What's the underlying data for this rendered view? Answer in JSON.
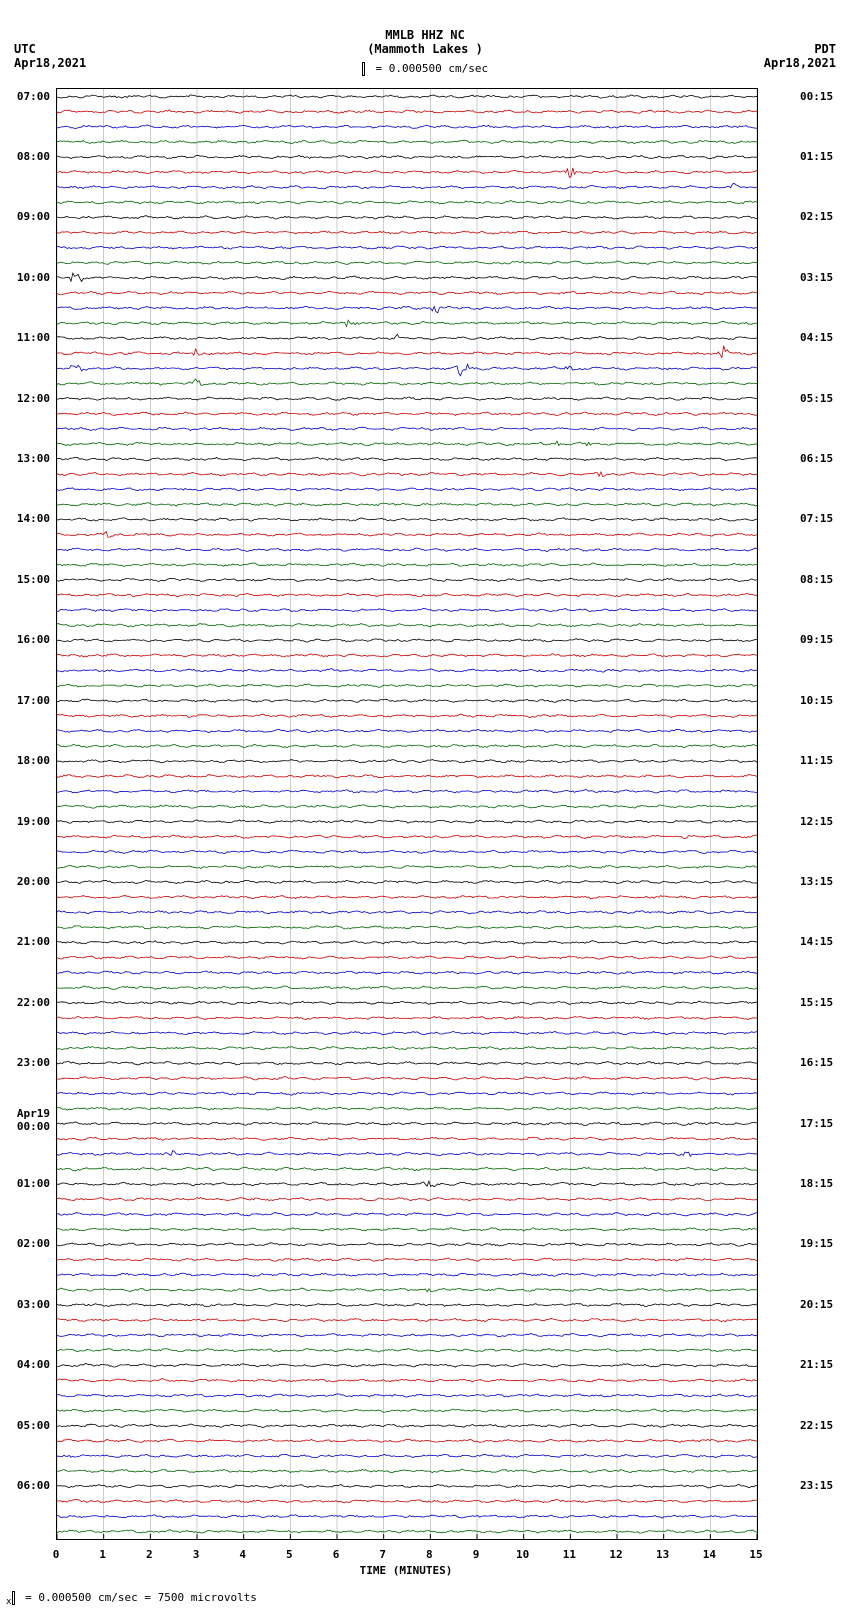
{
  "type": "helicorder",
  "header": {
    "station": "MMLB HHZ NC",
    "location": "(Mammoth Lakes )",
    "scale_label": "= 0.000500 cm/sec"
  },
  "left_axis": {
    "tz": "UTC",
    "date": "Apr18,2021"
  },
  "right_axis": {
    "tz": "PDT",
    "date": "Apr18,2021"
  },
  "footer": "= 0.000500 cm/sec =    7500 microvolts",
  "xaxis": {
    "title": "TIME (MINUTES)",
    "ticks": [
      "0",
      "1",
      "2",
      "3",
      "4",
      "5",
      "6",
      "7",
      "8",
      "9",
      "10",
      "11",
      "12",
      "13",
      "14",
      "15"
    ]
  },
  "plot": {
    "background_color": "#ffffff",
    "grid_color": "#999999",
    "n_traces": 96,
    "minutes": 15,
    "trace_colors_cycle": [
      "#000000",
      "#cc0000",
      "#0000cc",
      "#006600"
    ],
    "noise_amplitude": 1.2,
    "left_hour_labels": [
      {
        "row": 0,
        "text": "07:00"
      },
      {
        "row": 4,
        "text": "08:00"
      },
      {
        "row": 8,
        "text": "09:00"
      },
      {
        "row": 12,
        "text": "10:00"
      },
      {
        "row": 16,
        "text": "11:00"
      },
      {
        "row": 20,
        "text": "12:00"
      },
      {
        "row": 24,
        "text": "13:00"
      },
      {
        "row": 28,
        "text": "14:00"
      },
      {
        "row": 32,
        "text": "15:00"
      },
      {
        "row": 36,
        "text": "16:00"
      },
      {
        "row": 40,
        "text": "17:00"
      },
      {
        "row": 44,
        "text": "18:00"
      },
      {
        "row": 48,
        "text": "19:00"
      },
      {
        "row": 52,
        "text": "20:00"
      },
      {
        "row": 56,
        "text": "21:00"
      },
      {
        "row": 60,
        "text": "22:00"
      },
      {
        "row": 64,
        "text": "23:00"
      },
      {
        "row": 68,
        "text": "Apr19",
        "extra": "00:00"
      },
      {
        "row": 72,
        "text": "01:00"
      },
      {
        "row": 76,
        "text": "02:00"
      },
      {
        "row": 80,
        "text": "03:00"
      },
      {
        "row": 84,
        "text": "04:00"
      },
      {
        "row": 88,
        "text": "05:00"
      },
      {
        "row": 92,
        "text": "06:00"
      }
    ],
    "right_hour_labels": [
      {
        "row": 0,
        "text": "00:15"
      },
      {
        "row": 4,
        "text": "01:15"
      },
      {
        "row": 8,
        "text": "02:15"
      },
      {
        "row": 12,
        "text": "03:15"
      },
      {
        "row": 16,
        "text": "04:15"
      },
      {
        "row": 20,
        "text": "05:15"
      },
      {
        "row": 24,
        "text": "06:15"
      },
      {
        "row": 28,
        "text": "07:15"
      },
      {
        "row": 32,
        "text": "08:15"
      },
      {
        "row": 36,
        "text": "09:15"
      },
      {
        "row": 40,
        "text": "10:15"
      },
      {
        "row": 44,
        "text": "11:15"
      },
      {
        "row": 48,
        "text": "12:15"
      },
      {
        "row": 52,
        "text": "13:15"
      },
      {
        "row": 56,
        "text": "14:15"
      },
      {
        "row": 60,
        "text": "15:15"
      },
      {
        "row": 64,
        "text": "16:15"
      },
      {
        "row": 68,
        "text": "17:15"
      },
      {
        "row": 72,
        "text": "18:15"
      },
      {
        "row": 76,
        "text": "19:15"
      },
      {
        "row": 80,
        "text": "20:15"
      },
      {
        "row": 84,
        "text": "21:15"
      },
      {
        "row": 88,
        "text": "22:15"
      },
      {
        "row": 92,
        "text": "23:15"
      }
    ],
    "events": [
      {
        "row": 5,
        "minute": 11.0,
        "amp": 6
      },
      {
        "row": 6,
        "minute": 14.5,
        "amp": 4
      },
      {
        "row": 12,
        "minute": 0.4,
        "amp": 10
      },
      {
        "row": 14,
        "minute": 8.1,
        "amp": 6
      },
      {
        "row": 15,
        "minute": 6.3,
        "amp": 8
      },
      {
        "row": 16,
        "minute": 7.3,
        "amp": 4
      },
      {
        "row": 17,
        "minute": 3.0,
        "amp": 5
      },
      {
        "row": 17,
        "minute": 14.3,
        "amp": 10
      },
      {
        "row": 18,
        "minute": 0.4,
        "amp": 5
      },
      {
        "row": 18,
        "minute": 8.7,
        "amp": 10
      },
      {
        "row": 18,
        "minute": 11.0,
        "amp": 6
      },
      {
        "row": 19,
        "minute": 3.0,
        "amp": 6
      },
      {
        "row": 23,
        "minute": 10.7,
        "amp": 3
      },
      {
        "row": 23,
        "minute": 11.3,
        "amp": 3
      },
      {
        "row": 25,
        "minute": 11.6,
        "amp": 5
      },
      {
        "row": 29,
        "minute": 1.1,
        "amp": 4
      },
      {
        "row": 49,
        "minute": 13.5,
        "amp": 4
      },
      {
        "row": 70,
        "minute": 2.5,
        "amp": 4
      },
      {
        "row": 70,
        "minute": 13.5,
        "amp": 4
      },
      {
        "row": 72,
        "minute": 8.0,
        "amp": 4
      },
      {
        "row": 79,
        "minute": 8.0,
        "amp": 3
      }
    ]
  }
}
